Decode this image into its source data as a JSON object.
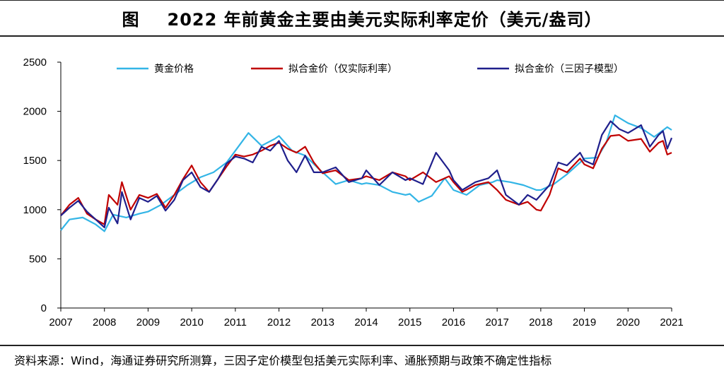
{
  "title": {
    "label": "图",
    "text": "2022 年前黄金主要由美元实际利率定价（美元/盎司）"
  },
  "source": "资料来源：Wind，海通证券研究所测算，三因子定价模型包括美元实际利率、通胀预期与政策不确定性指标",
  "chart_data": {
    "type": "line",
    "ylim": [
      0,
      2500
    ],
    "xlim": [
      2007,
      2021
    ],
    "yticks": [
      0,
      500,
      1000,
      1500,
      2000,
      2500
    ],
    "xticks": [
      "2007",
      "2008",
      "2009",
      "2010",
      "2011",
      "2012",
      "2013",
      "2014",
      "2015",
      "2016",
      "2017",
      "2018",
      "2019",
      "2020",
      "2021"
    ],
    "legend_position": "top",
    "grid": false,
    "series": [
      {
        "name": "黄金价格",
        "color": "#33b5e6",
        "points": [
          [
            2007.0,
            790
          ],
          [
            2007.2,
            900
          ],
          [
            2007.5,
            920
          ],
          [
            2007.8,
            850
          ],
          [
            2008.0,
            780
          ],
          [
            2008.2,
            950
          ],
          [
            2008.5,
            920
          ],
          [
            2008.8,
            960
          ],
          [
            2009.0,
            980
          ],
          [
            2009.3,
            1050
          ],
          [
            2009.6,
            1150
          ],
          [
            2009.9,
            1250
          ],
          [
            2010.2,
            1330
          ],
          [
            2010.5,
            1380
          ],
          [
            2010.8,
            1480
          ],
          [
            2011.0,
            1600
          ],
          [
            2011.3,
            1780
          ],
          [
            2011.6,
            1650
          ],
          [
            2011.9,
            1720
          ],
          [
            2012.0,
            1750
          ],
          [
            2012.3,
            1600
          ],
          [
            2012.6,
            1550
          ],
          [
            2012.9,
            1420
          ],
          [
            2013.0,
            1380
          ],
          [
            2013.3,
            1260
          ],
          [
            2013.6,
            1300
          ],
          [
            2013.9,
            1260
          ],
          [
            2014.0,
            1270
          ],
          [
            2014.3,
            1250
          ],
          [
            2014.6,
            1180
          ],
          [
            2014.9,
            1150
          ],
          [
            2015.0,
            1160
          ],
          [
            2015.2,
            1080
          ],
          [
            2015.5,
            1140
          ],
          [
            2015.8,
            1320
          ],
          [
            2016.0,
            1200
          ],
          [
            2016.3,
            1150
          ],
          [
            2016.6,
            1250
          ],
          [
            2016.9,
            1280
          ],
          [
            2017.0,
            1300
          ],
          [
            2017.3,
            1280
          ],
          [
            2017.6,
            1250
          ],
          [
            2017.9,
            1200
          ],
          [
            2018.0,
            1200
          ],
          [
            2018.3,
            1260
          ],
          [
            2018.6,
            1360
          ],
          [
            2018.9,
            1480
          ],
          [
            2019.0,
            1520
          ],
          [
            2019.3,
            1530
          ],
          [
            2019.5,
            1680
          ],
          [
            2019.7,
            1960
          ],
          [
            2020.0,
            1880
          ],
          [
            2020.3,
            1830
          ],
          [
            2020.6,
            1740
          ],
          [
            2020.9,
            1840
          ],
          [
            2021.0,
            1810
          ]
        ]
      },
      {
        "name": "拟合金价（仅实际利率）",
        "color": "#c00000",
        "points": [
          [
            2007.0,
            940
          ],
          [
            2007.2,
            1050
          ],
          [
            2007.4,
            1120
          ],
          [
            2007.6,
            960
          ],
          [
            2007.8,
            900
          ],
          [
            2008.0,
            850
          ],
          [
            2008.1,
            1150
          ],
          [
            2008.3,
            1050
          ],
          [
            2008.4,
            1280
          ],
          [
            2008.6,
            1000
          ],
          [
            2008.8,
            1150
          ],
          [
            2009.0,
            1120
          ],
          [
            2009.2,
            1160
          ],
          [
            2009.4,
            1020
          ],
          [
            2009.6,
            1150
          ],
          [
            2009.8,
            1310
          ],
          [
            2010.0,
            1450
          ],
          [
            2010.2,
            1280
          ],
          [
            2010.4,
            1180
          ],
          [
            2010.6,
            1310
          ],
          [
            2010.8,
            1440
          ],
          [
            2011.0,
            1560
          ],
          [
            2011.2,
            1540
          ],
          [
            2011.4,
            1560
          ],
          [
            2011.6,
            1600
          ],
          [
            2011.8,
            1650
          ],
          [
            2012.0,
            1680
          ],
          [
            2012.2,
            1620
          ],
          [
            2012.4,
            1580
          ],
          [
            2012.6,
            1640
          ],
          [
            2012.8,
            1480
          ],
          [
            2013.0,
            1370
          ],
          [
            2013.3,
            1400
          ],
          [
            2013.6,
            1300
          ],
          [
            2013.9,
            1320
          ],
          [
            2014.0,
            1340
          ],
          [
            2014.3,
            1300
          ],
          [
            2014.6,
            1380
          ],
          [
            2014.9,
            1340
          ],
          [
            2015.0,
            1300
          ],
          [
            2015.3,
            1380
          ],
          [
            2015.6,
            1280
          ],
          [
            2015.9,
            1340
          ],
          [
            2016.0,
            1280
          ],
          [
            2016.2,
            1180
          ],
          [
            2016.5,
            1250
          ],
          [
            2016.8,
            1280
          ],
          [
            2017.0,
            1200
          ],
          [
            2017.2,
            1100
          ],
          [
            2017.5,
            1050
          ],
          [
            2017.7,
            1080
          ],
          [
            2017.9,
            1000
          ],
          [
            2018.0,
            990
          ],
          [
            2018.2,
            1150
          ],
          [
            2018.4,
            1420
          ],
          [
            2018.6,
            1380
          ],
          [
            2018.9,
            1520
          ],
          [
            2019.0,
            1460
          ],
          [
            2019.2,
            1420
          ],
          [
            2019.4,
            1620
          ],
          [
            2019.6,
            1750
          ],
          [
            2019.8,
            1760
          ],
          [
            2020.0,
            1700
          ],
          [
            2020.3,
            1720
          ],
          [
            2020.5,
            1590
          ],
          [
            2020.7,
            1680
          ],
          [
            2020.8,
            1700
          ],
          [
            2020.9,
            1560
          ],
          [
            2021.0,
            1580
          ]
        ]
      },
      {
        "name": "拟合金价（三因子模型）",
        "color": "#1f1f8c",
        "points": [
          [
            2007.0,
            940
          ],
          [
            2007.2,
            1020
          ],
          [
            2007.4,
            1090
          ],
          [
            2007.6,
            980
          ],
          [
            2007.8,
            900
          ],
          [
            2008.0,
            820
          ],
          [
            2008.1,
            1020
          ],
          [
            2008.3,
            860
          ],
          [
            2008.4,
            1180
          ],
          [
            2008.6,
            900
          ],
          [
            2008.8,
            1120
          ],
          [
            2009.0,
            1080
          ],
          [
            2009.2,
            1140
          ],
          [
            2009.4,
            990
          ],
          [
            2009.6,
            1100
          ],
          [
            2009.8,
            1300
          ],
          [
            2010.0,
            1380
          ],
          [
            2010.2,
            1230
          ],
          [
            2010.4,
            1180
          ],
          [
            2010.6,
            1310
          ],
          [
            2010.8,
            1470
          ],
          [
            2011.0,
            1540
          ],
          [
            2011.2,
            1520
          ],
          [
            2011.4,
            1480
          ],
          [
            2011.6,
            1640
          ],
          [
            2011.8,
            1600
          ],
          [
            2012.0,
            1700
          ],
          [
            2012.2,
            1500
          ],
          [
            2012.4,
            1380
          ],
          [
            2012.6,
            1550
          ],
          [
            2012.8,
            1380
          ],
          [
            2013.0,
            1380
          ],
          [
            2013.3,
            1430
          ],
          [
            2013.6,
            1280
          ],
          [
            2013.9,
            1320
          ],
          [
            2014.0,
            1400
          ],
          [
            2014.3,
            1250
          ],
          [
            2014.6,
            1380
          ],
          [
            2014.9,
            1300
          ],
          [
            2015.0,
            1320
          ],
          [
            2015.3,
            1260
          ],
          [
            2015.6,
            1580
          ],
          [
            2015.9,
            1400
          ],
          [
            2016.0,
            1300
          ],
          [
            2016.2,
            1200
          ],
          [
            2016.5,
            1280
          ],
          [
            2016.8,
            1320
          ],
          [
            2017.0,
            1400
          ],
          [
            2017.2,
            1150
          ],
          [
            2017.5,
            1050
          ],
          [
            2017.7,
            1150
          ],
          [
            2017.9,
            1100
          ],
          [
            2018.0,
            1150
          ],
          [
            2018.2,
            1250
          ],
          [
            2018.4,
            1480
          ],
          [
            2018.6,
            1450
          ],
          [
            2018.9,
            1580
          ],
          [
            2019.0,
            1500
          ],
          [
            2019.2,
            1460
          ],
          [
            2019.4,
            1760
          ],
          [
            2019.6,
            1900
          ],
          [
            2019.8,
            1820
          ],
          [
            2020.0,
            1780
          ],
          [
            2020.3,
            1860
          ],
          [
            2020.5,
            1640
          ],
          [
            2020.7,
            1760
          ],
          [
            2020.8,
            1800
          ],
          [
            2020.9,
            1620
          ],
          [
            2021.0,
            1730
          ]
        ]
      }
    ]
  }
}
